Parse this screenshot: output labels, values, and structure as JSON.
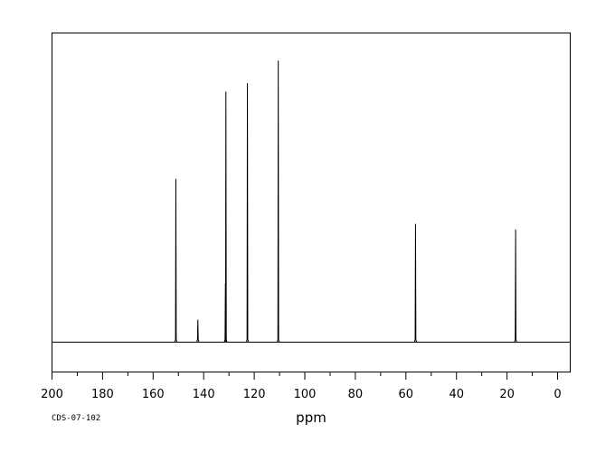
{
  "chart_data": {
    "type": "line",
    "title": "",
    "xlabel": "ppm",
    "ylabel": "",
    "xlim": [
      200,
      -5
    ],
    "x_reversed": true,
    "grid": false,
    "x_ticks": [
      200,
      180,
      160,
      140,
      120,
      100,
      80,
      60,
      40,
      20,
      0
    ],
    "tick_labels": [
      "200",
      "180",
      "160",
      "140",
      "120",
      "100",
      "80",
      "60",
      "40",
      "20",
      "0"
    ],
    "peaks": [
      {
        "ppm": 151.0,
        "height": 0.58
      },
      {
        "ppm": 142.3,
        "height": 0.08
      },
      {
        "ppm": 131.2,
        "height": 0.89
      },
      {
        "ppm": 131.4,
        "height": 0.21
      },
      {
        "ppm": 122.7,
        "height": 0.92
      },
      {
        "ppm": 110.5,
        "height": 1.0
      },
      {
        "ppm": 56.2,
        "height": 0.42
      },
      {
        "ppm": 16.6,
        "height": 0.4
      }
    ]
  },
  "footer": {
    "code": "CDS-07-102"
  }
}
